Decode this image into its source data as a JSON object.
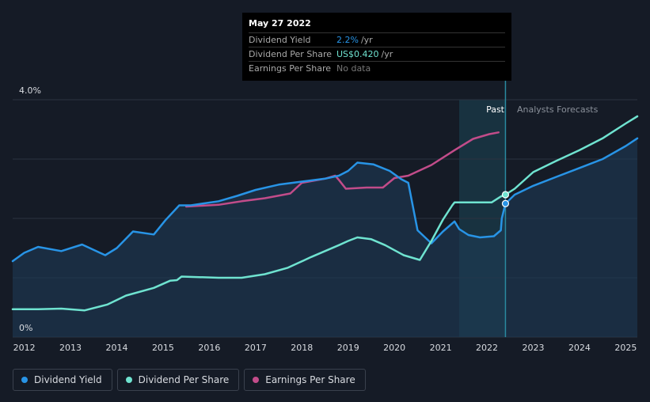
{
  "chart_data": {
    "type": "line",
    "y_top_label": "4.0%",
    "y_bottom_label": "0%",
    "ylim": [
      0,
      4.0
    ],
    "xlim": [
      2011.75,
      2025.25
    ],
    "x_ticks": [
      "2012",
      "2013",
      "2014",
      "2015",
      "2016",
      "2017",
      "2018",
      "2019",
      "2020",
      "2021",
      "2022",
      "2023",
      "2024",
      "2025"
    ],
    "past_label": "Past",
    "forecast_label": "Analysts Forecasts",
    "forecast_start": 2022.4,
    "past_band_start": 2021.4,
    "series": [
      {
        "name": "Dividend Yield",
        "color": "#2894e6",
        "x": [
          2011.75,
          2012.0,
          2012.3,
          2012.8,
          2013.25,
          2013.75,
          2014.0,
          2014.35,
          2014.8,
          2015.05,
          2015.35,
          2015.6,
          2016.2,
          2016.6,
          2017.0,
          2017.5,
          2018.0,
          2018.5,
          2018.8,
          2019.0,
          2019.2,
          2019.55,
          2019.9,
          2020.15,
          2020.3,
          2020.5,
          2020.8,
          2021.05,
          2021.3,
          2021.4,
          2021.6,
          2021.85,
          2022.15,
          2022.3,
          2022.32,
          2022.4,
          2022.6,
          2023.0,
          2023.5,
          2024.0,
          2024.5,
          2025.0,
          2025.25
        ],
        "values": [
          1.28,
          1.42,
          1.52,
          1.45,
          1.56,
          1.38,
          1.5,
          1.78,
          1.73,
          1.97,
          2.22,
          2.22,
          2.29,
          2.38,
          2.48,
          2.57,
          2.62,
          2.67,
          2.72,
          2.8,
          2.94,
          2.91,
          2.8,
          2.66,
          2.6,
          1.8,
          1.58,
          1.78,
          1.95,
          1.82,
          1.72,
          1.68,
          1.7,
          1.8,
          2.0,
          2.25,
          2.4,
          2.55,
          2.7,
          2.85,
          3.0,
          3.22,
          3.35
        ]
      },
      {
        "name": "Dividend Per Share",
        "color": "#6fe3d0",
        "x": [
          2011.75,
          2012.3,
          2012.8,
          2013.3,
          2013.8,
          2014.2,
          2014.8,
          2015.15,
          2015.3,
          2015.4,
          2016.2,
          2016.7,
          2017.2,
          2017.7,
          2018.2,
          2018.8,
          2019.0,
          2019.2,
          2019.5,
          2019.8,
          2020.2,
          2020.55,
          2020.8,
          2021.05,
          2021.25,
          2021.3,
          2021.4,
          2022.1,
          2022.3,
          2022.4,
          2022.6,
          2023.0,
          2023.5,
          2024.0,
          2024.5,
          2025.0,
          2025.25
        ],
        "values": [
          0.47,
          0.47,
          0.48,
          0.45,
          0.55,
          0.7,
          0.83,
          0.95,
          0.96,
          1.02,
          1.0,
          1.0,
          1.06,
          1.17,
          1.35,
          1.55,
          1.62,
          1.68,
          1.65,
          1.55,
          1.38,
          1.3,
          1.62,
          1.98,
          2.22,
          2.27,
          2.27,
          2.27,
          2.37,
          2.4,
          2.5,
          2.78,
          2.97,
          3.15,
          3.35,
          3.6,
          3.72
        ]
      },
      {
        "name": "Earnings Per Share",
        "color": "#c24c8a",
        "x": [
          2015.5,
          2016.2,
          2016.7,
          2017.2,
          2017.75,
          2018.0,
          2018.5,
          2018.72,
          2018.8,
          2018.95,
          2019.4,
          2019.75,
          2020.0,
          2020.3,
          2020.8,
          2021.3,
          2021.7,
          2022.05,
          2022.25
        ],
        "values": [
          2.2,
          2.23,
          2.29,
          2.34,
          2.42,
          2.6,
          2.67,
          2.72,
          2.65,
          2.5,
          2.52,
          2.52,
          2.68,
          2.72,
          2.9,
          3.15,
          3.34,
          3.42,
          3.45
        ]
      }
    ],
    "tooltip_date_x": 2022.4
  },
  "tooltip": {
    "date": "May 27 2022",
    "rows": [
      {
        "label": "Dividend Yield",
        "value": "2.2%",
        "unit": "/yr"
      },
      {
        "label": "Dividend Per Share",
        "value": "US$0.420",
        "unit": "/yr"
      },
      {
        "label": "Earnings Per Share",
        "value": "No data",
        "unit": ""
      }
    ]
  },
  "legend": [
    {
      "label": "Dividend Yield",
      "color": "#2894e6"
    },
    {
      "label": "Dividend Per Share",
      "color": "#6fe3d0"
    },
    {
      "label": "Earnings Per Share",
      "color": "#c24c8a"
    }
  ],
  "colors": {
    "background": "#151b26",
    "grid": "#2c3340",
    "past_band": "#1a3b4a",
    "forecast_line": "#2a8aa0"
  }
}
